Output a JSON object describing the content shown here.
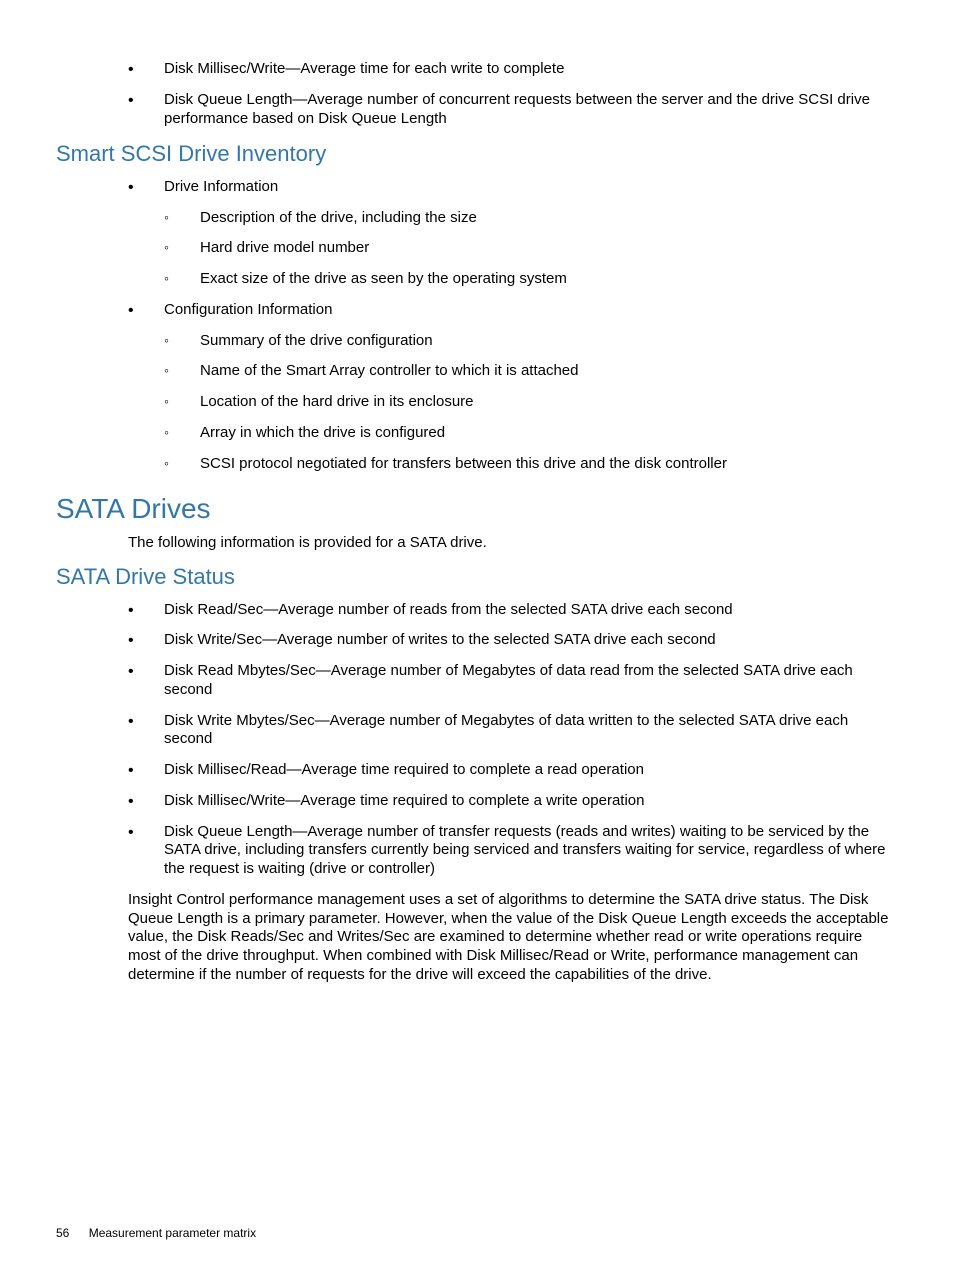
{
  "top_bullets": [
    "Disk Millisec/Write—Average time for each write to complete",
    "Disk Queue Length—Average number of concurrent requests between the server and the drive SCSI drive performance based on Disk Queue Length"
  ],
  "heading_scsi_inventory": "Smart SCSI Drive Inventory",
  "scsi_inventory": [
    {
      "label": "Drive Information",
      "subs": [
        "Description of the drive, including the size",
        "Hard drive model number",
        "Exact size of the drive as seen by the operating system"
      ]
    },
    {
      "label": "Configuration Information",
      "subs": [
        "Summary of the drive configuration",
        "Name of the Smart Array controller to which it is attached",
        "Location of the hard drive in its enclosure",
        "Array in which the drive is configured",
        "SCSI protocol negotiated for transfers between this drive and the disk controller"
      ]
    }
  ],
  "heading_sata_drives": "SATA Drives",
  "sata_intro": "The following information is provided for a SATA drive.",
  "heading_sata_status": "SATA Drive Status",
  "sata_status_bullets": [
    "Disk Read/Sec—Average number of reads from the selected SATA drive each second",
    "Disk Write/Sec—Average number of writes to the selected SATA drive each second",
    "Disk Read Mbytes/Sec—Average number of Megabytes of data read from the selected SATA drive each second",
    "Disk Write Mbytes/Sec—Average number of Megabytes of data written to the selected SATA drive each second",
    "Disk Millisec/Read—Average time required to complete a read operation",
    "Disk Millisec/Write—Average time required to complete a write operation",
    "Disk Queue Length—Average number of transfer requests (reads and writes) waiting to be serviced by the SATA drive, including transfers currently being serviced and transfers waiting for service, regardless of where the request is waiting (drive or controller)"
  ],
  "sata_paragraph": "Insight Control performance management uses a set of algorithms to determine the SATA drive status. The Disk Queue Length is a primary parameter. However, when the value of the Disk Queue Length exceeds the acceptable value, the Disk Reads/Sec and Writes/Sec are examined to determine whether read or write operations require most of the drive throughput. When combined with Disk Millisec/Read or Write, performance management can determine if the number of requests for the drive will exceed the capabilities of the drive.",
  "footer_page": "56",
  "footer_label": "Measurement parameter matrix"
}
